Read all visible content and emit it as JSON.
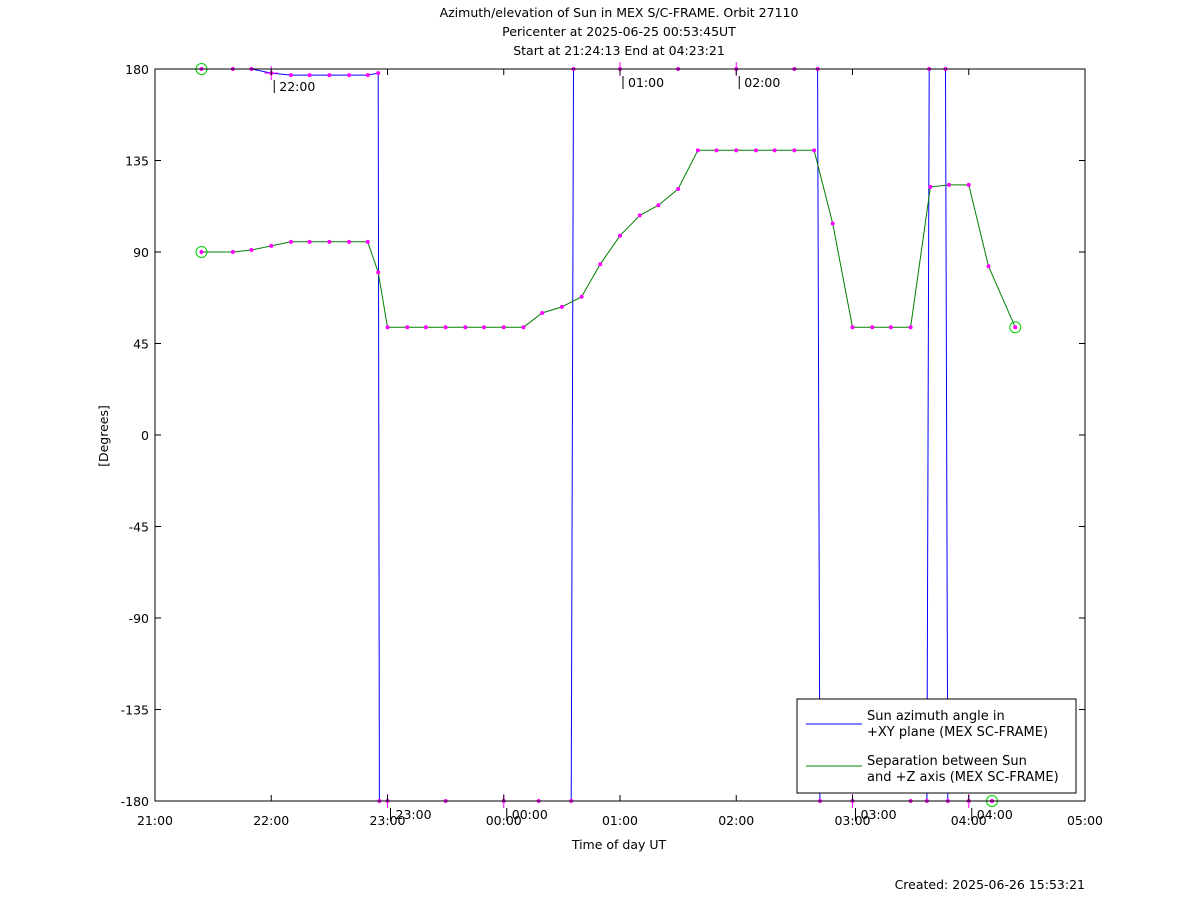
{
  "chart_data": {
    "type": "line",
    "title": [
      "Azimuth/elevation of Sun in MEX S/C-FRAME.  Orbit 27110",
      "Pericenter at 2025-06-25 00:53:45UT",
      "Start at 21:24:13 End at 04:23:21"
    ],
    "xlabel": "Time of day UT",
    "ylabel": "[Degrees]",
    "created": "Created: 2025-06-26 15:53:21",
    "xlim": [
      21.0,
      29.0
    ],
    "ylim": [
      -180,
      180
    ],
    "x_tick_labels": [
      "21:00",
      "22:00",
      "23:00",
      "00:00",
      "01:00",
      "02:00",
      "03:00",
      "04:00",
      "05:00"
    ],
    "y_ticks": [
      180,
      135,
      90,
      45,
      0,
      -45,
      -90,
      -135,
      -180
    ],
    "y_tick_labels": [
      "180",
      "135",
      "90",
      "45",
      "0",
      "-45",
      "-90",
      "-135",
      "-180"
    ],
    "grid": false,
    "legend_position": "bottom-right",
    "hour_markers": [
      {
        "label": "22:00",
        "x": 22.0,
        "y": 178
      },
      {
        "label": "23:00",
        "x": 23.0,
        "y": -180
      },
      {
        "label": "00:00",
        "x": 24.0,
        "y": -180
      },
      {
        "label": "01:00",
        "x": 25.0,
        "y": 180
      },
      {
        "label": "02:00",
        "x": 26.0,
        "y": 180
      },
      {
        "label": "03:00",
        "x": 27.0,
        "y": -180
      },
      {
        "label": "04:00",
        "x": 28.0,
        "y": -180
      }
    ],
    "series": [
      {
        "name": "Sun azimuth angle in +XY plane (MEX SC-FRAME)",
        "color": "#0000ff",
        "x": [
          21.4,
          21.67,
          21.83,
          22.0,
          22.17,
          22.33,
          22.5,
          22.67,
          22.83,
          22.92,
          22.93,
          23.0,
          23.5,
          24.0,
          24.3,
          24.58,
          24.6,
          25.0,
          25.5,
          26.0,
          26.5,
          26.7,
          26.72,
          27.0,
          27.5,
          27.64,
          27.66,
          27.8,
          27.82,
          28.0,
          28.2
        ],
        "y": [
          180,
          180,
          180,
          178,
          177,
          177,
          177,
          177,
          177,
          178,
          -180,
          -180,
          -180,
          -180,
          -180,
          -180,
          180,
          180,
          180,
          180,
          180,
          180,
          -180,
          -180,
          -180,
          -180,
          180,
          180,
          -180,
          -180,
          -180
        ]
      },
      {
        "name": "Separation between Sun and +Z axis (MEX SC-FRAME)",
        "color": "#008000",
        "x": [
          21.4,
          21.67,
          21.83,
          22.0,
          22.17,
          22.33,
          22.5,
          22.67,
          22.83,
          22.92,
          23.0,
          23.17,
          23.33,
          23.5,
          23.67,
          23.83,
          24.0,
          24.17,
          24.33,
          24.5,
          24.67,
          24.83,
          25.0,
          25.17,
          25.33,
          25.5,
          25.67,
          25.83,
          26.0,
          26.17,
          26.33,
          26.5,
          26.67,
          26.83,
          27.0,
          27.17,
          27.33,
          27.5,
          27.67,
          27.83,
          28.0,
          28.17,
          28.4
        ],
        "y": [
          90,
          90,
          91,
          93,
          95,
          95,
          95,
          95,
          95,
          80,
          53,
          53,
          53,
          53,
          53,
          53,
          53,
          53,
          60,
          63,
          68,
          84,
          98,
          108,
          113,
          121,
          140,
          140,
          140,
          140,
          140,
          140,
          140,
          104,
          53,
          53,
          53,
          53,
          122,
          123,
          123,
          83,
          53
        ]
      }
    ]
  }
}
